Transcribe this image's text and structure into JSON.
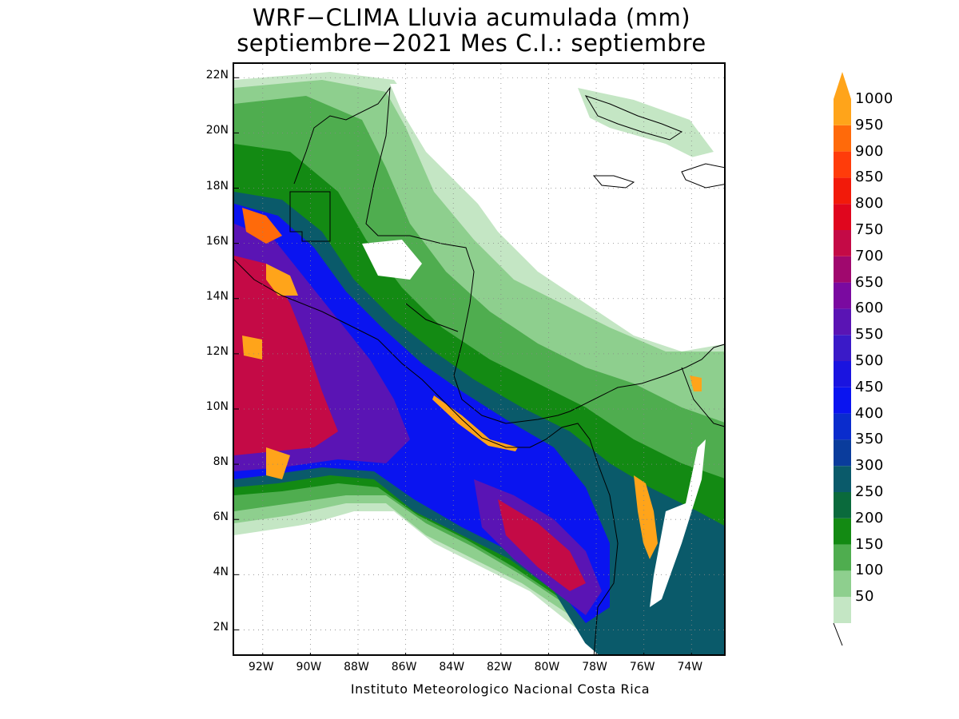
{
  "title": {
    "line1": "WRF−CLIMA Lluvia acumulada (mm)",
    "line2": "septiembre−2021 Mes C.I.: septiembre"
  },
  "credit": "Instituto Meteorologico Nacional Costa Rica",
  "map": {
    "lon_range": [
      -93.2,
      -72.5
    ],
    "lat_range": [
      1.0,
      22.5
    ],
    "lat_ticks": [
      {
        "value": 22,
        "label": "22N"
      },
      {
        "value": 20,
        "label": "20N"
      },
      {
        "value": 18,
        "label": "18N"
      },
      {
        "value": 16,
        "label": "16N"
      },
      {
        "value": 14,
        "label": "14N"
      },
      {
        "value": 12,
        "label": "12N"
      },
      {
        "value": 10,
        "label": "10N"
      },
      {
        "value": 8,
        "label": "8N"
      },
      {
        "value": 6,
        "label": "6N"
      },
      {
        "value": 4,
        "label": "4N"
      },
      {
        "value": 2,
        "label": "2N"
      }
    ],
    "lon_ticks": [
      {
        "value": -92,
        "label": "92W"
      },
      {
        "value": -90,
        "label": "90W"
      },
      {
        "value": -88,
        "label": "88W"
      },
      {
        "value": -86,
        "label": "86W"
      },
      {
        "value": -84,
        "label": "84W"
      },
      {
        "value": -82,
        "label": "82W"
      },
      {
        "value": -80,
        "label": "80W"
      },
      {
        "value": -78,
        "label": "78W"
      },
      {
        "value": -76,
        "label": "76W"
      },
      {
        "value": -74,
        "label": "74W"
      }
    ],
    "grid": "dotted"
  },
  "colorbar": {
    "levels": [
      {
        "label": "50",
        "color": "#c4e6c4"
      },
      {
        "label": "100",
        "color": "#8ecf8e"
      },
      {
        "label": "150",
        "color": "#4fad4f"
      },
      {
        "label": "200",
        "color": "#138a13"
      },
      {
        "label": "250",
        "color": "#0a6a3c"
      },
      {
        "label": "300",
        "color": "#0a5a6a"
      },
      {
        "label": "350",
        "color": "#0a3c9c"
      },
      {
        "label": "400",
        "color": "#0a2ccd"
      },
      {
        "label": "450",
        "color": "#0a14f0"
      },
      {
        "label": "500",
        "color": "#1a14e0"
      },
      {
        "label": "550",
        "color": "#3a1ac8"
      },
      {
        "label": "600",
        "color": "#5a14b4"
      },
      {
        "label": "650",
        "color": "#7a0aa0"
      },
      {
        "label": "700",
        "color": "#a0086e"
      },
      {
        "label": "750",
        "color": "#c40a46"
      },
      {
        "label": "800",
        "color": "#e0061e"
      },
      {
        "label": "850",
        "color": "#f21a0a"
      },
      {
        "label": "900",
        "color": "#ff3c0a"
      },
      {
        "label": "950",
        "color": "#ff6a0a"
      },
      {
        "label": "1000",
        "color": "#ffa41a"
      }
    ]
  }
}
